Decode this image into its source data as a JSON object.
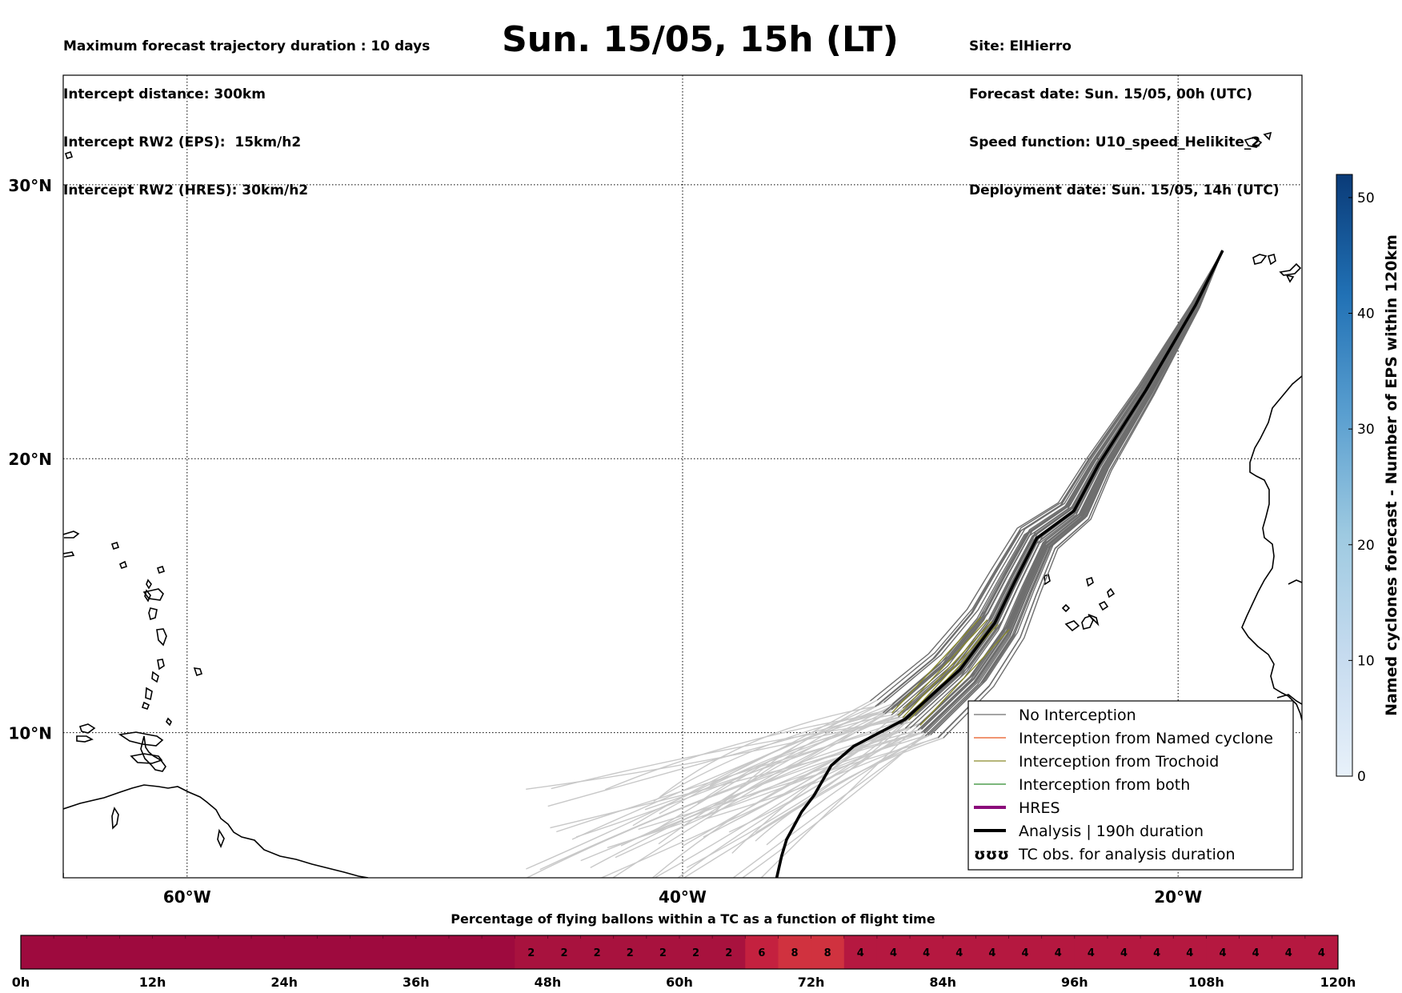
{
  "header": {
    "left_lines": [
      "Maximum forecast trajectory duration : 10 days",
      "Intercept distance: 300km",
      "Intercept RW2 (EPS):  15km/h2",
      "Intercept RW2 (HRES): 30km/h2"
    ],
    "title": "Sun. 15/05, 15h (LT)",
    "right_lines": [
      "Site: ElHierro",
      "Forecast date: Sun. 15/05, 00h (UTC)",
      "Speed function: U10_speed_Helikite_2",
      "Deployment date: Sun. 15/05, 14h (UTC)"
    ]
  },
  "chart_data": [
    {
      "type": "line",
      "title": "Sun. 15/05, 15h (LT)",
      "description_source": "map of balloon trajectories",
      "x_axis": {
        "ticks": [
          -60,
          -40,
          -20
        ],
        "tick_labels": [
          "60°W",
          "40°W",
          "20°W"
        ],
        "range": [
          -65,
          -15
        ]
      },
      "y_axis": {
        "ticks": [
          10,
          20,
          30
        ],
        "tick_labels": [
          "10°N",
          "20°N",
          "30°N"
        ],
        "range": [
          4.7,
          34
        ]
      },
      "grid": true,
      "legend_position": "bottom-right",
      "legend": [
        {
          "label": "No Interception",
          "color": "#6e6e6e",
          "style": "thin"
        },
        {
          "label": "Interception from Named cyclone",
          "color": "#e8561f",
          "style": "thin"
        },
        {
          "label": "Interception from Trochoid",
          "color": "#8a8a2a",
          "style": "thin"
        },
        {
          "label": "Interception from both",
          "color": "#2e8b2e",
          "style": "thin"
        },
        {
          "label": "HRES",
          "color": "#8b0a7a",
          "style": "thick"
        },
        {
          "label": "Analysis | 190h duration",
          "color": "#000000",
          "style": "thick"
        },
        {
          "label": "TC obs. for analysis duration",
          "color": "#000000",
          "style": "symbol",
          "symbol": "ʊʊʊ"
        }
      ],
      "series": [
        {
          "name": "Analysis | 190h duration",
          "points": [
            [
              -18.2,
              27.6
            ],
            [
              -19.3,
              25.6
            ],
            [
              -21.3,
              22.5
            ],
            [
              -23.2,
              19.8
            ],
            [
              -24.2,
              18.1
            ],
            [
              -25.7,
              17.1
            ],
            [
              -26.6,
              15.5
            ],
            [
              -27.4,
              14.0
            ],
            [
              -28.8,
              12.3
            ],
            [
              -31.0,
              10.5
            ],
            [
              -33.1,
              9.5
            ],
            [
              -34.0,
              8.8
            ],
            [
              -34.7,
              7.7
            ],
            [
              -35.2,
              7.1
            ],
            [
              -35.8,
              6.1
            ],
            [
              -36.0,
              5.5
            ],
            [
              -36.2,
              4.7
            ]
          ]
        }
      ],
      "ensemble": {
        "no_interception_tracks": 51,
        "late_segment_tracks": 51
      },
      "colorbar": {
        "label": "Named cyclones forecast - Number of EPS within 120km",
        "ticks": [
          0,
          10,
          20,
          30,
          40,
          50
        ],
        "range": [
          0,
          52
        ],
        "colors": [
          "#e8f1fa",
          "#0a3b78"
        ]
      }
    },
    {
      "type": "heatmap",
      "title": "Percentage of flying ballons within a TC as a function of flight time",
      "x_ticks": [
        "0h",
        "12h",
        "24h",
        "36h",
        "48h",
        "60h",
        "72h",
        "84h",
        "96h",
        "108h",
        "120h"
      ],
      "cells": 40,
      "values": [
        null,
        null,
        null,
        null,
        null,
        null,
        null,
        null,
        null,
        null,
        null,
        null,
        null,
        null,
        null,
        2,
        2,
        2,
        2,
        2,
        2,
        2,
        6,
        8,
        8,
        4,
        4,
        4,
        4,
        4,
        4,
        4,
        4,
        4,
        4,
        4,
        4,
        4,
        4,
        4
      ],
      "colors": {
        "empty": "#9e0a3e",
        "2": "#a8123e",
        "4": "#b51840",
        "6": "#c4213f",
        "8": "#d0323f"
      }
    }
  ]
}
